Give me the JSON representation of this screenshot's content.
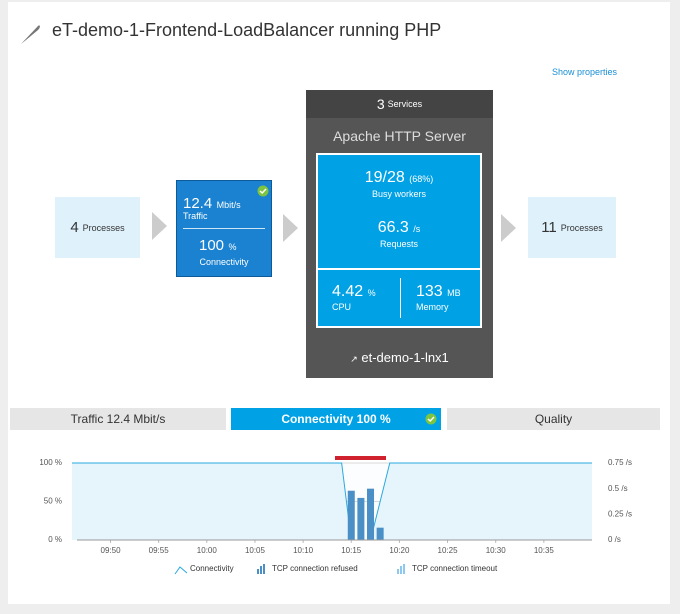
{
  "header": {
    "title": "eT-demo-1-Frontend-LoadBalancer running PHP",
    "show_properties": "Show properties"
  },
  "processes_left": {
    "count": "4",
    "label": "Processes"
  },
  "traffic_box": {
    "traffic_value": "12.4",
    "traffic_unit": "Mbit/s",
    "traffic_label": "Traffic",
    "connectivity_value": "100",
    "connectivity_unit": "%",
    "connectivity_label": "Connectivity"
  },
  "services": {
    "count": "3",
    "label": "Services",
    "server": "Apache HTTP Server",
    "busy": "19/28",
    "busy_pct": "(68%)",
    "busy_label": "Busy workers",
    "requests": "66.3",
    "requests_unit": "/s",
    "requests_label": "Requests",
    "cpu": "4.42",
    "cpu_unit": "%",
    "cpu_label": "CPU",
    "memory": "133",
    "memory_unit": "MB",
    "memory_label": "Memory",
    "host": "et-demo-1-lnx1"
  },
  "processes_right": {
    "count": "11",
    "label": "Processes"
  },
  "tabs": [
    "Traffic 12.4 Mbit/s",
    "Connectivity 100 %",
    "Quality"
  ],
  "chart_data": {
    "type": "line",
    "xlim": [
      "09:46",
      "10:40"
    ],
    "xticks": [
      "09:50",
      "09:55",
      "10:00",
      "10:05",
      "10:10",
      "10:15",
      "10:20",
      "10:25",
      "10:30",
      "10:35"
    ],
    "ylim": [
      0,
      100
    ],
    "yticks": [
      {
        "value": 0,
        "label": "0 %"
      },
      {
        "value": 50,
        "label": "50 %"
      },
      {
        "value": 100,
        "label": "100 %"
      }
    ],
    "y2lim": [
      0,
      0.75
    ],
    "y2ticks": [
      {
        "value": 0,
        "label": "0 /s"
      },
      {
        "value": 0.25,
        "label": "0.25 /s"
      },
      {
        "value": 0.5,
        "label": "0.5 /s"
      },
      {
        "value": 0.75,
        "label": "0.75 /s"
      }
    ],
    "grid": true,
    "series": [
      {
        "name": "Connectivity",
        "color": "#2aa9e0",
        "type": "line",
        "x": [
          "09:46",
          "10:14",
          "10:15",
          "10:17",
          "10:19",
          "10:40"
        ],
        "values": [
          100,
          100,
          0,
          0,
          100,
          100
        ]
      },
      {
        "name": "TCP connection refused",
        "color": "#4a8fc6",
        "type": "bar",
        "axis": "y2",
        "x": [
          "10:15",
          "10:16",
          "10:17",
          "10:18"
        ],
        "values": [
          0.48,
          0.41,
          0.5,
          0.12
        ]
      },
      {
        "name": "TCP connection timeout",
        "color": "#8cc8ef",
        "type": "bar",
        "axis": "y2",
        "x": [
          "10:15",
          "10:16",
          "10:17",
          "10:18"
        ],
        "values": [
          null,
          null,
          null,
          null
        ]
      }
    ]
  }
}
